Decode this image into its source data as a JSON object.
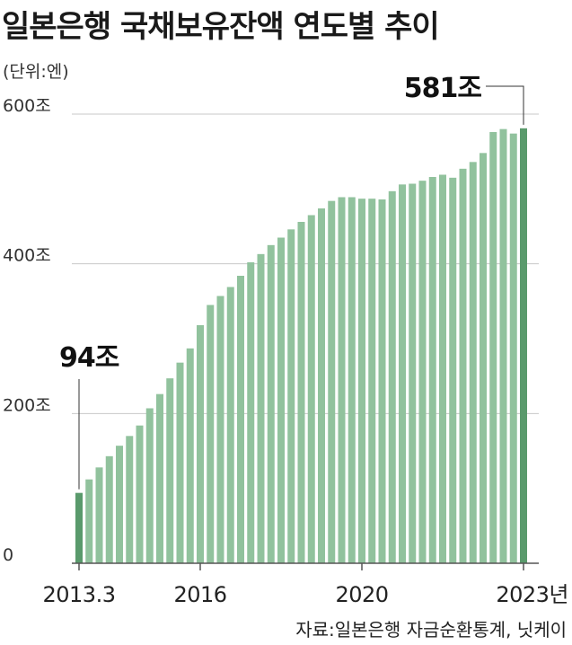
{
  "header": {
    "title": "일본은행 국채보유잔액 연도별 추이"
  },
  "chart_data": {
    "type": "bar",
    "title": "일본은행 국채보유잔액 연도별 추이",
    "unit_label": "(단위:엔)",
    "ylim": [
      0,
      640
    ],
    "y_ticks": [
      {
        "value": 0,
        "label": "0"
      },
      {
        "value": 200,
        "label": "200조"
      },
      {
        "value": 400,
        "label": "400조"
      },
      {
        "value": 600,
        "label": "600조"
      }
    ],
    "grid": true,
    "x_tick_labels": [
      {
        "label": "2013.3",
        "bar_index": 0
      },
      {
        "label": "2016",
        "bar_index": 12
      },
      {
        "label": "2020",
        "bar_index": 28
      },
      {
        "label": "2023년",
        "bar_index": 44
      }
    ],
    "values": [
      94,
      112,
      128,
      143,
      157,
      170,
      184,
      207,
      226,
      247,
      268,
      287,
      318,
      345,
      357,
      369,
      384,
      402,
      413,
      425,
      435,
      446,
      456,
      465,
      474,
      484,
      489,
      489,
      487,
      487,
      486,
      497,
      506,
      507,
      511,
      516,
      519,
      515,
      527,
      536,
      548,
      576,
      580,
      574,
      581
    ],
    "highlight_indices": [
      0,
      44
    ],
    "annotations": [
      {
        "text": "94조",
        "bar_index": 0
      },
      {
        "text": "581조",
        "bar_index": 44
      }
    ],
    "colors": {
      "bar": "#91c29d",
      "highlight": "#5a9a6c",
      "grid": "#c8c8c8",
      "axis": "#555555"
    }
  },
  "footer": {
    "source": "자료:일본은행 자금순환통계, 닛케이"
  }
}
